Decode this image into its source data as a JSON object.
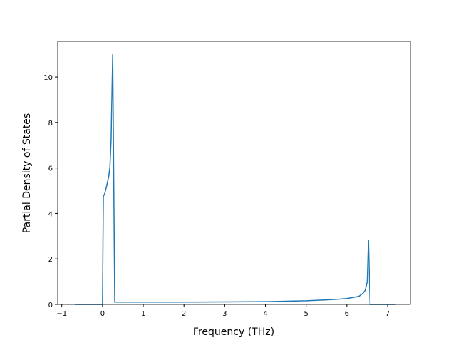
{
  "chart_data": {
    "type": "line",
    "x_label": "Frequency (THz)",
    "y_label": "Partial Density of States",
    "x": [
      -0.68,
      0,
      0.02,
      0.05,
      0.1,
      0.15,
      0.18,
      0.21,
      0.25,
      0.3,
      1.0,
      2.0,
      3.0,
      4.0,
      4.5,
      5.0,
      5.5,
      5.8,
      6.0,
      6.2,
      6.3,
      6.4,
      6.45,
      6.5,
      6.53,
      6.57,
      7.2
    ],
    "series": [
      {
        "color": "#1f77b4",
        "values": [
          0,
          0,
          4.75,
          4.85,
          5.2,
          5.6,
          6.0,
          7.2,
          11.0,
          0.1,
          0.1,
          0.1,
          0.11,
          0.12,
          0.14,
          0.16,
          0.2,
          0.23,
          0.26,
          0.32,
          0.36,
          0.5,
          0.62,
          1.0,
          2.85,
          0,
          0
        ]
      }
    ],
    "xlim": [
      -1.1,
      7.56
    ],
    "ylim": [
      0,
      11.57
    ],
    "xticks": [
      {
        "value": -1,
        "label": "−1"
      },
      0,
      1,
      2,
      3,
      4,
      5,
      6,
      7
    ],
    "yticks": [
      0,
      2,
      4,
      6,
      8,
      10
    ]
  }
}
